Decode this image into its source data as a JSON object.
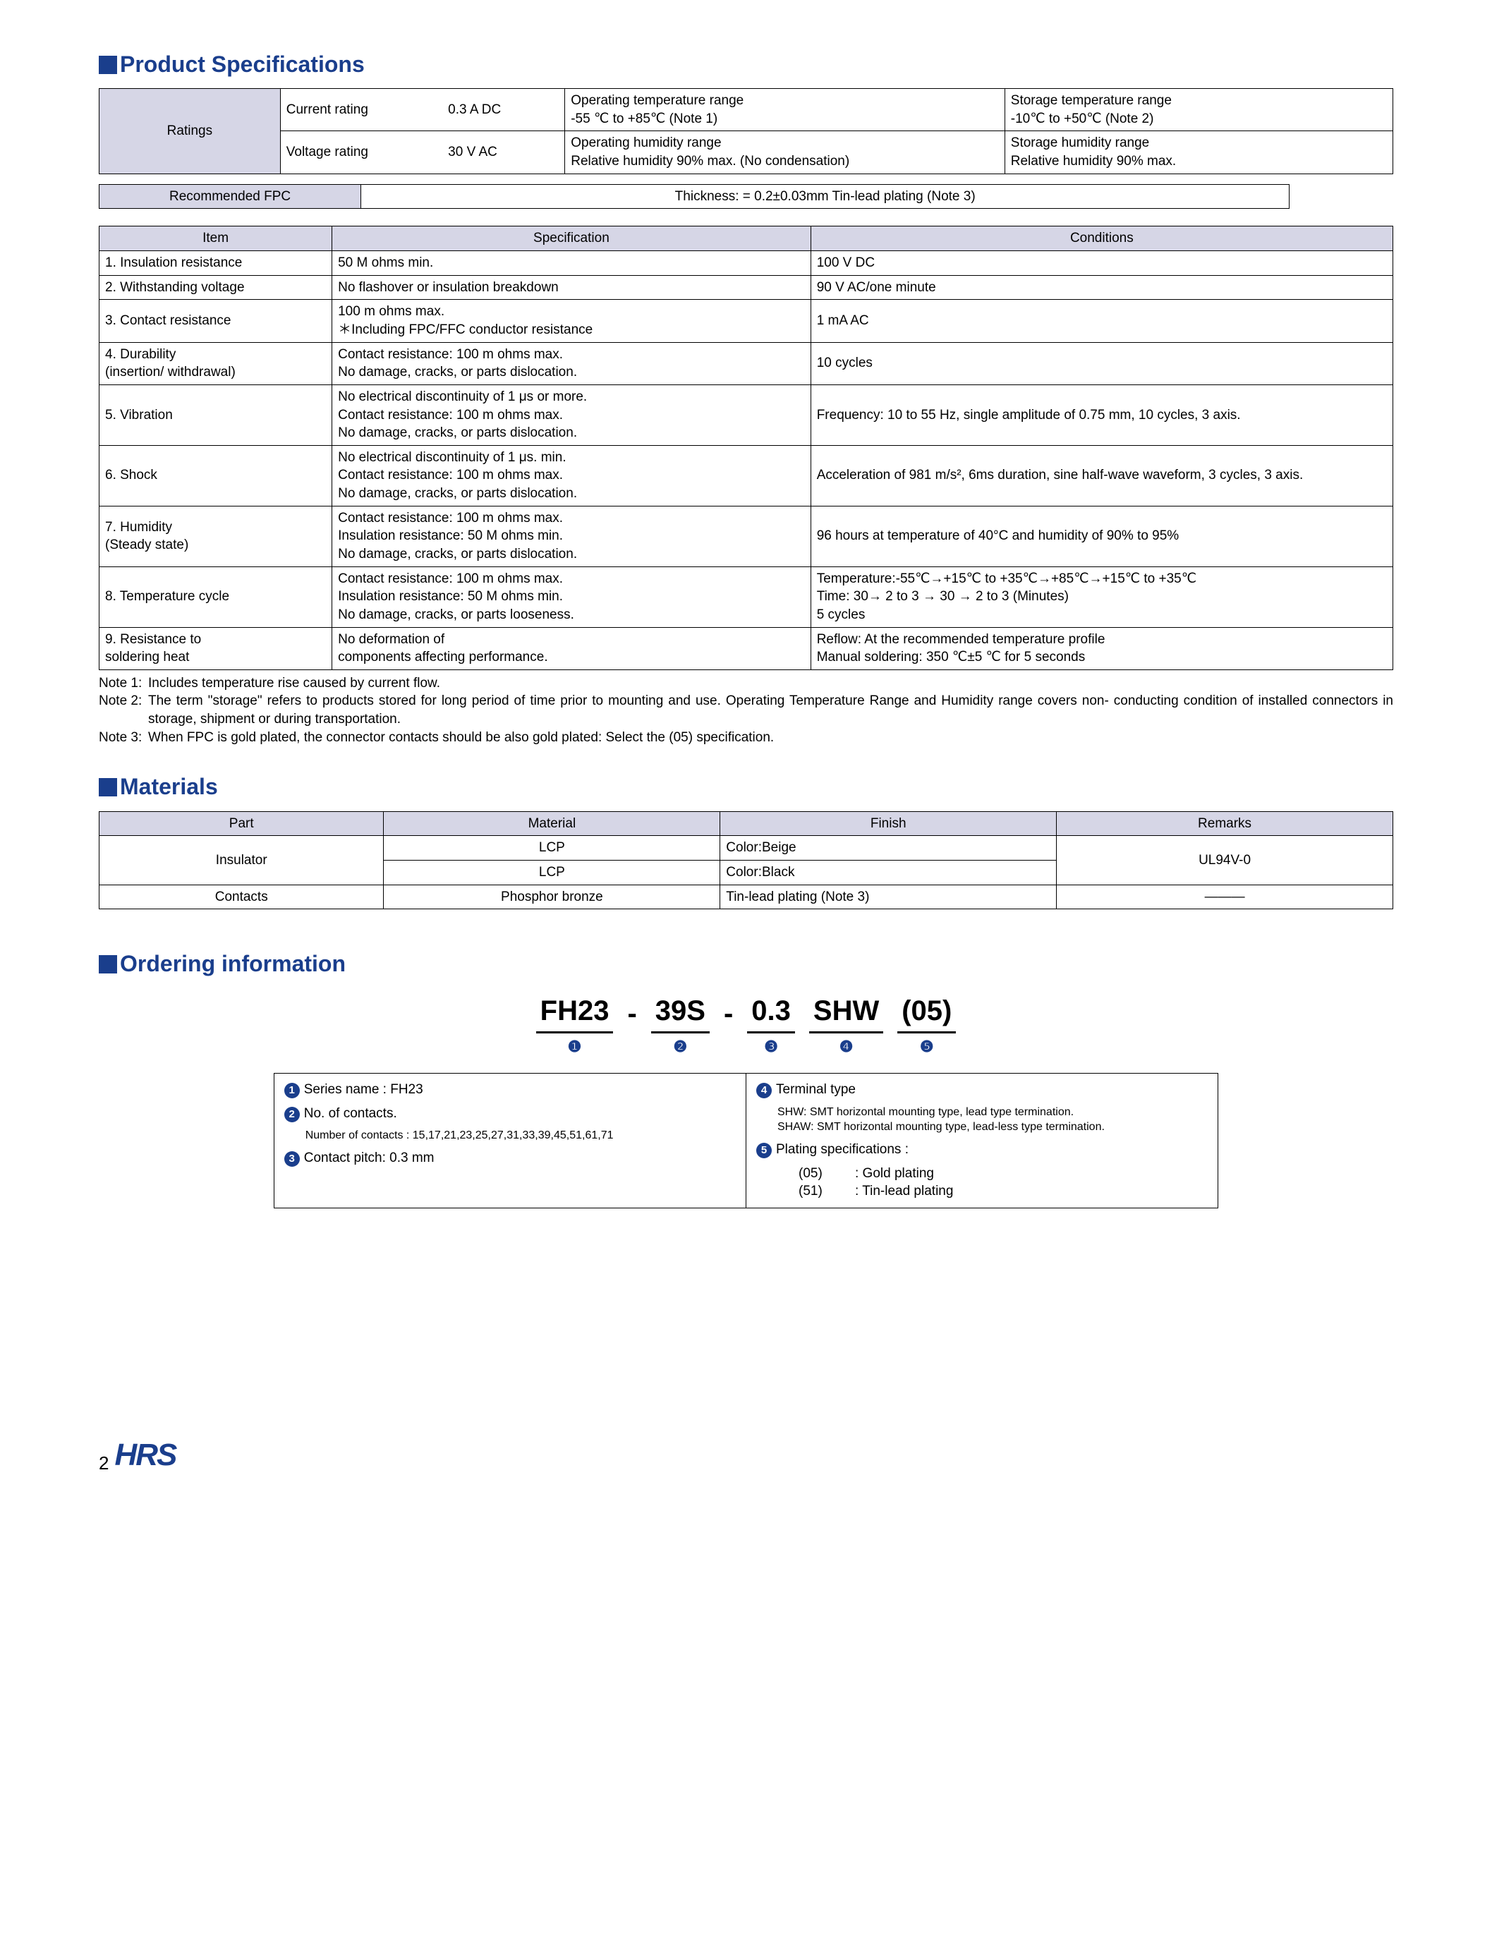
{
  "colors": {
    "brand": "#1a3e8c",
    "header_bg": "#d6d6e6",
    "border": "#000000",
    "page_bg": "#ffffff",
    "text": "#000000"
  },
  "sections": {
    "spec_heading": "Product Specifications",
    "materials_heading": "Materials",
    "ordering_heading": "Ordering information"
  },
  "ratings": {
    "row_label": "Ratings",
    "r1": {
      "label": "Current rating",
      "value": "0.3 A DC",
      "op_label": "Operating temperature range",
      "op_value": "-55 ℃  to +85℃ (Note 1)",
      "st_label": "Storage temperature range",
      "st_value": "-10℃ to +50℃ (Note 2)"
    },
    "r2": {
      "label": "Voltage rating",
      "value": "30 V AC",
      "op_label": "Operating humidity range",
      "op_value": "Relative humidity 90% max. (No condensation)",
      "st_label": "Storage humidity range",
      "st_value": "Relative humidity 90% max."
    }
  },
  "fpc": {
    "label": "Recommended FPC",
    "value": "Thickness: = 0.2±0.03mm Tin-lead plating (Note 3)"
  },
  "spec_table": {
    "headers": {
      "item": "Item",
      "spec": "Specification",
      "cond": "Conditions"
    },
    "rows": [
      {
        "item": "1. Insulation resistance",
        "spec": "50 M ohms min.",
        "cond": "100 V DC"
      },
      {
        "item": "2. Withstanding voltage",
        "spec": "No flashover or insulation breakdown",
        "cond": "90 V AC/one minute"
      },
      {
        "item": "3. Contact resistance",
        "spec": "100 m ohms max.\n＊Including FPC/FFC conductor resistance",
        "cond": "1 mA AC"
      },
      {
        "item": "4. Durability\n    (insertion/ withdrawal)",
        "spec": "Contact resistance: 100 m ohms max.\nNo damage, cracks, or parts dislocation.",
        "cond": "10 cycles"
      },
      {
        "item": "5. Vibration",
        "spec": "No electrical discontinuity of 1 μs or more.\nContact resistance: 100 m ohms max.\nNo damage, cracks, or parts dislocation.",
        "cond": "Frequency: 10 to 55 Hz, single amplitude of 0.75 mm, 10 cycles, 3 axis."
      },
      {
        "item": "6. Shock",
        "spec": "No electrical discontinuity of 1 μs. min.\nContact resistance: 100 m ohms max.\nNo damage, cracks, or parts dislocation.",
        "cond": "Acceleration of 981 m/s², 6ms duration, sine half-wave waveform, 3 cycles, 3 axis."
      },
      {
        "item": "7. Humidity\n     (Steady state)",
        "spec": "Contact resistance: 100 m ohms max.\nInsulation resistance: 50 M ohms min.\nNo damage, cracks, or parts dislocation.",
        "cond": "96 hours at temperature of 40°C and humidity of 90% to 95%"
      },
      {
        "item": "8. Temperature cycle",
        "spec": "Contact resistance: 100 m ohms max.\nInsulation resistance: 50 M ohms min.\nNo damage, cracks, or parts looseness.",
        "cond": "Temperature:-55℃→+15℃ to +35℃→+85℃→+15℃ to +35℃\nTime: 30→ 2 to 3 → 30 → 2 to 3 (Minutes)\n5 cycles"
      },
      {
        "item": "9. Resistance to\n    soldering heat",
        "spec": "No deformation of\ncomponents affecting performance.",
        "cond": "Reflow: At the recommended temperature profile\nManual soldering: 350 ℃±5 ℃ for 5 seconds"
      }
    ]
  },
  "notes": {
    "n1_label": "Note 1:",
    "n1": "Includes temperature rise caused by current flow.",
    "n2_label": "Note 2:",
    "n2": "The term \"storage\" refers to products stored for long period of time prior to mounting and use. Operating Temperature Range and Humidity range covers non- conducting condition of installed connectors in storage, shipment or during transportation.",
    "n3_label": "Note 3:",
    "n3": "When FPC is gold plated, the connector contacts should be also gold plated: Select the (05) specification."
  },
  "materials": {
    "headers": {
      "part": "Part",
      "material": "Material",
      "finish": "Finish",
      "remarks": "Remarks"
    },
    "rows": {
      "insulator_label": "Insulator",
      "ins1_mat": "LCP",
      "ins1_fin": "Color:Beige",
      "ins2_mat": "LCP",
      "ins2_fin": "Color:Black",
      "ins_rem": "UL94V-0",
      "contacts_label": "Contacts",
      "contacts_mat": "Phosphor bronze",
      "contacts_fin": "Tin-lead plating (Note 3)",
      "contacts_rem": "———"
    }
  },
  "ordering": {
    "pn": {
      "p1": "FH23",
      "p2": "39S",
      "p3": "0.3",
      "p4": "SHW",
      "p5": "(05)",
      "dash": "-"
    },
    "idx": {
      "i1": "❶",
      "i2": "❷",
      "i3": "❸",
      "i4": "❹",
      "i5": "❺"
    },
    "left": {
      "l1": "Series name : FH23",
      "l2": "No. of contacts.",
      "l2_sub": "Number of contacts : 15,17,21,23,25,27,31,33,39,45,51,61,71",
      "l3": "Contact pitch: 0.3 mm"
    },
    "right": {
      "r4": "Terminal type",
      "r4_sub1": "SHW: SMT horizontal mounting type, lead type termination.",
      "r4_sub2": "SHAW: SMT horizontal mounting type, lead-less type termination.",
      "r5": "Plating specifications :",
      "r5_opt1_code": "(05)",
      "r5_opt1_desc": ": Gold plating",
      "r5_opt2_code": "(51)",
      "r5_opt2_desc": ": Tin-lead plating"
    }
  },
  "footer": {
    "page": "2",
    "logo": "HRS"
  }
}
